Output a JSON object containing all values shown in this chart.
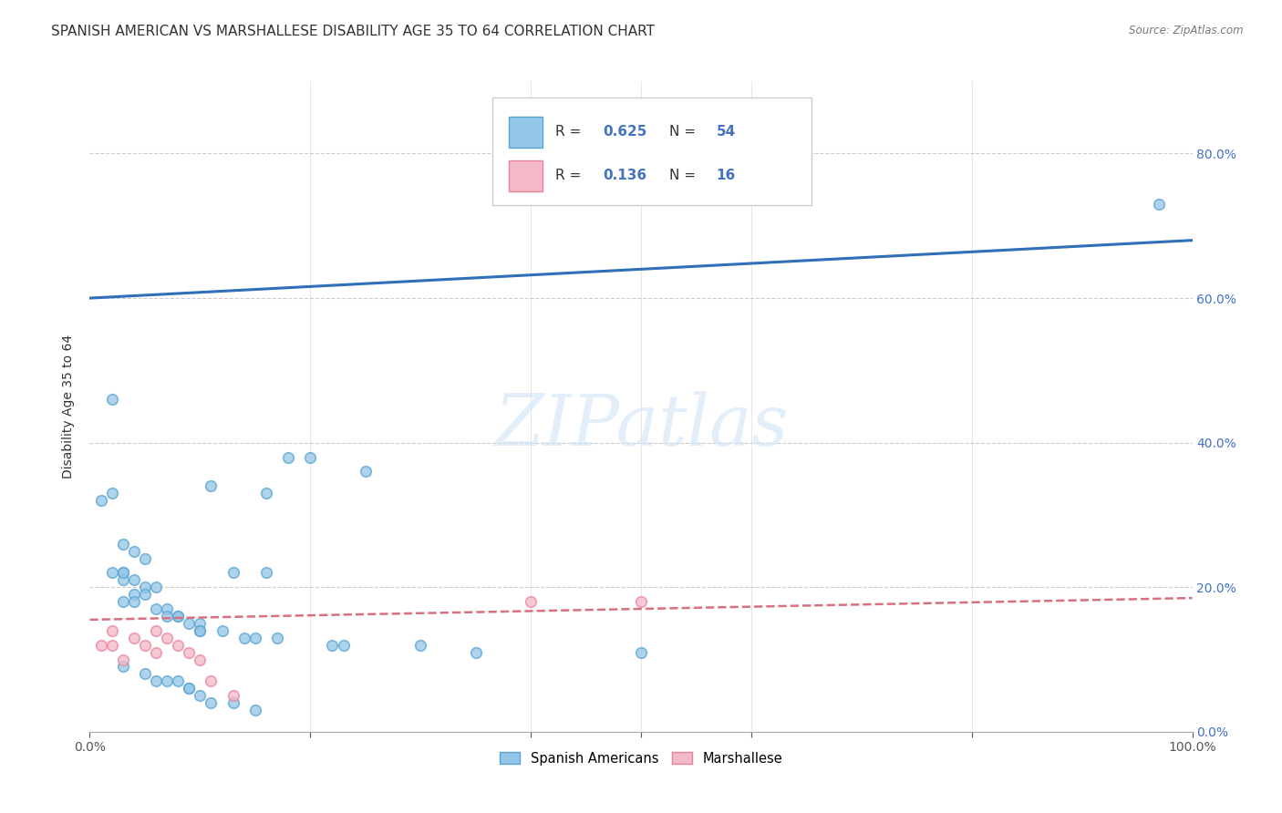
{
  "title": "SPANISH AMERICAN VS MARSHALLESE DISABILITY AGE 35 TO 64 CORRELATION CHART",
  "source": "Source: ZipAtlas.com",
  "ylabel": "Disability Age 35 to 64",
  "xlim": [
    0.0,
    1.0
  ],
  "ylim": [
    0.0,
    0.9
  ],
  "xticks": [
    0.0,
    1.0
  ],
  "xticklabels": [
    "0.0%",
    "100.0%"
  ],
  "yticks": [
    0.0,
    0.2,
    0.4,
    0.6,
    0.8
  ],
  "yticklabels_right": [
    "0.0%",
    "20.0%",
    "40.0%",
    "60.0%",
    "80.0%"
  ],
  "blue_color": "#93c6e8",
  "blue_edge_color": "#5ba3d0",
  "pink_color": "#f4b8c8",
  "pink_edge_color": "#e8849a",
  "blue_line_color": "#3070b8",
  "pink_line_color": "#d87080",
  "watermark": "ZIPatlas",
  "blue_scatter_x": [
    0.02,
    0.02,
    0.01,
    0.03,
    0.04,
    0.05,
    0.03,
    0.03,
    0.04,
    0.05,
    0.06,
    0.05,
    0.04,
    0.03,
    0.04,
    0.06,
    0.07,
    0.07,
    0.08,
    0.08,
    0.09,
    0.1,
    0.1,
    0.1,
    0.11,
    0.12,
    0.14,
    0.15,
    0.16,
    0.17,
    0.18,
    0.2,
    0.22,
    0.23,
    0.25,
    0.3,
    0.35,
    0.03,
    0.05,
    0.06,
    0.07,
    0.08,
    0.09,
    0.09,
    0.1,
    0.11,
    0.13,
    0.15,
    0.02,
    0.03,
    0.16,
    0.13,
    0.97,
    0.5
  ],
  "blue_scatter_y": [
    0.46,
    0.33,
    0.32,
    0.26,
    0.25,
    0.24,
    0.22,
    0.21,
    0.21,
    0.2,
    0.2,
    0.19,
    0.19,
    0.18,
    0.18,
    0.17,
    0.17,
    0.16,
    0.16,
    0.16,
    0.15,
    0.15,
    0.14,
    0.14,
    0.34,
    0.14,
    0.13,
    0.13,
    0.33,
    0.13,
    0.38,
    0.38,
    0.12,
    0.12,
    0.36,
    0.12,
    0.11,
    0.09,
    0.08,
    0.07,
    0.07,
    0.07,
    0.06,
    0.06,
    0.05,
    0.04,
    0.04,
    0.03,
    0.22,
    0.22,
    0.22,
    0.22,
    0.73,
    0.11
  ],
  "pink_scatter_x": [
    0.01,
    0.02,
    0.02,
    0.03,
    0.04,
    0.05,
    0.06,
    0.06,
    0.07,
    0.08,
    0.09,
    0.1,
    0.11,
    0.13,
    0.4,
    0.5
  ],
  "pink_scatter_y": [
    0.12,
    0.14,
    0.12,
    0.1,
    0.13,
    0.12,
    0.11,
    0.14,
    0.13,
    0.12,
    0.11,
    0.1,
    0.07,
    0.05,
    0.18,
    0.18
  ],
  "blue_line_x0": 0.0,
  "blue_line_y0": 0.6,
  "blue_line_x1": 1.0,
  "blue_line_y1": 0.68,
  "pink_line_x0": 0.0,
  "pink_line_y0": 0.155,
  "pink_line_x1": 1.0,
  "pink_line_y1": 0.185,
  "grid_color": "#cccccc",
  "background_color": "#ffffff",
  "title_fontsize": 11,
  "axis_label_fontsize": 10,
  "tick_fontsize": 10,
  "marker_size": 70,
  "legend_blue_R": "0.625",
  "legend_blue_N": "54",
  "legend_pink_R": "0.136",
  "legend_pink_N": "16"
}
